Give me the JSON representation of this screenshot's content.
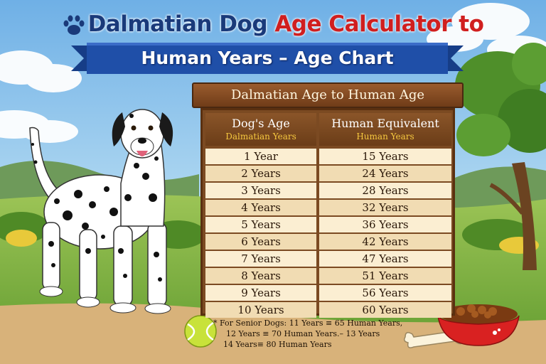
{
  "title": {
    "part1": "Dalmatian Dog",
    "part2": "Age Calculator to",
    "subtitle": "Human Years – Age Chart"
  },
  "board": {
    "header": "Dalmatian Age to Human Age",
    "col1_title": "Dog's Age",
    "col1_sub": "Dalmatian Years",
    "col2_title": "Human Equivalent",
    "col2_sub": "Human Years",
    "rows": [
      {
        "dog": "1 Year",
        "human": "15 Years"
      },
      {
        "dog": "2 Years",
        "human": "24 Years"
      },
      {
        "dog": "3 Years",
        "human": "28 Years"
      },
      {
        "dog": "4 Years",
        "human": "32 Years"
      },
      {
        "dog": "5 Years",
        "human": "36 Years"
      },
      {
        "dog": "6 Years",
        "human": "42 Years"
      },
      {
        "dog": "7 Years",
        "human": "47 Years"
      },
      {
        "dog": "8 Years",
        "human": "51 Years"
      },
      {
        "dog": "9 Years",
        "human": "56 Years"
      },
      {
        "dog": "10 Years",
        "human": "60 Years"
      }
    ]
  },
  "note": {
    "line1": "* For Senior Dogs: 11 Years ≡ 65 Human Years,",
    "line2": "12 Years ≡ 70 Human Years.– 13 Years",
    "line3": "14 Years≡ 80 Human Years"
  },
  "colors": {
    "title_blue": "#1a3a7a",
    "title_red": "#d01f1f",
    "ribbon": "#1f4fa8",
    "wood": "#7b4a22",
    "accent_yellow": "#f6c83f"
  }
}
